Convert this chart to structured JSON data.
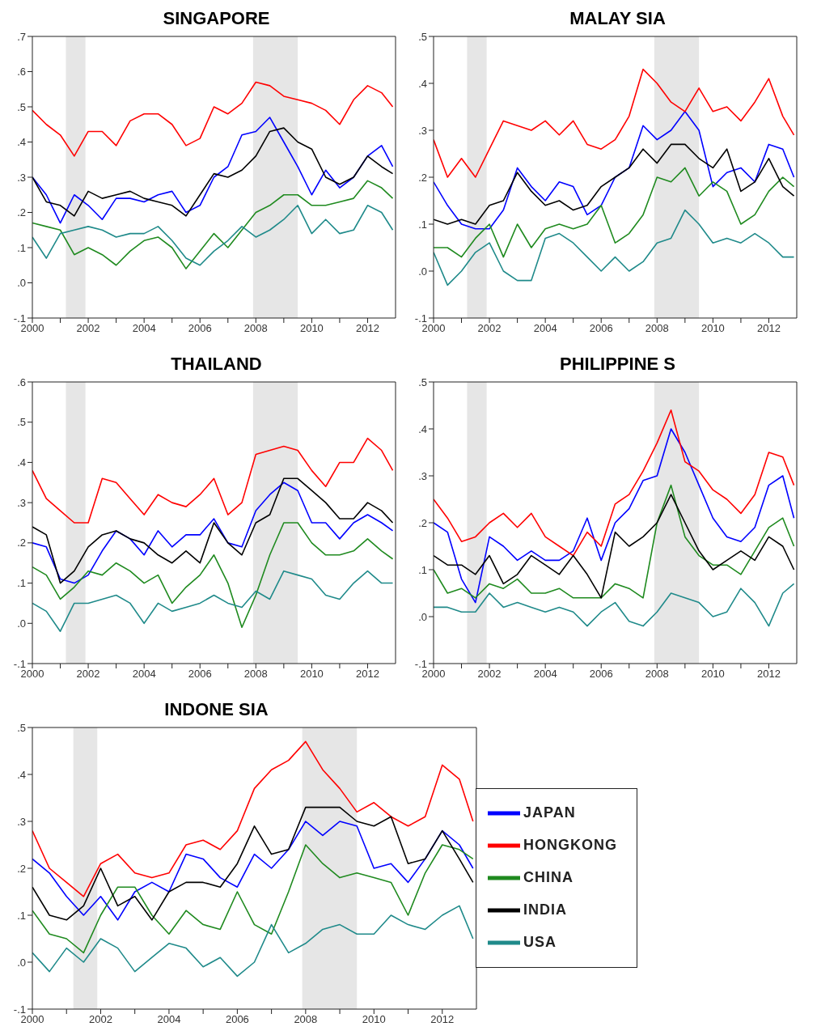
{
  "chart_data": [
    {
      "type": "line",
      "title": "SINGAPORE",
      "x": [
        2000,
        2000.5,
        2001,
        2001.5,
        2002,
        2002.5,
        2003,
        2003.5,
        2004,
        2004.5,
        2005,
        2005.5,
        2006,
        2006.5,
        2007,
        2007.5,
        2008,
        2008.5,
        2009,
        2009.5,
        2010,
        2010.5,
        2011,
        2011.5,
        2012,
        2012.5,
        2012.9
      ],
      "xlim": [
        2000,
        2013
      ],
      "xticks": [
        2000,
        {
          "value": 2001,
          "label": null
        },
        2002,
        {
          "value": 2003,
          "label": null
        },
        2004,
        {
          "value": 2005,
          "label": null
        },
        2006,
        {
          "value": 2007,
          "label": null
        },
        2008,
        {
          "value": 2009,
          "label": null
        },
        2010,
        {
          "value": 2011,
          "label": null
        },
        2012
      ],
      "ylim": [
        -0.1,
        0.7
      ],
      "yticks": [
        {
          "value": -0.1,
          "label": "-.1"
        },
        {
          "value": 0,
          "label": ".0"
        },
        {
          "value": 0.1,
          "label": ".1"
        },
        {
          "value": 0.2,
          "label": ".2"
        },
        {
          "value": 0.3,
          "label": ".3"
        },
        {
          "value": 0.4,
          "label": ".4"
        },
        {
          "value": 0.5,
          "label": ".5"
        },
        {
          "value": 0.6,
          "label": ".6"
        },
        {
          "value": 0.7,
          "label": ".7"
        }
      ],
      "bands": [
        {
          "axis": "x",
          "from": 2001.2,
          "to": 2001.9,
          "color": "#e6e6e6"
        },
        {
          "axis": "x",
          "from": 2007.9,
          "to": 2009.5,
          "color": "#e6e6e6"
        }
      ],
      "series": [
        {
          "color": "#0000ff",
          "values": [
            0.3,
            0.25,
            0.17,
            0.25,
            0.22,
            0.18,
            0.24,
            0.24,
            0.23,
            0.25,
            0.26,
            0.2,
            0.22,
            0.3,
            0.33,
            0.42,
            0.43,
            0.47,
            0.4,
            0.33,
            0.25,
            0.32,
            0.27,
            0.3,
            0.36,
            0.39,
            0.33
          ]
        },
        {
          "color": "#ff0000",
          "values": [
            0.49,
            0.45,
            0.42,
            0.36,
            0.43,
            0.43,
            0.39,
            0.46,
            0.48,
            0.48,
            0.45,
            0.39,
            0.41,
            0.5,
            0.48,
            0.51,
            0.57,
            0.56,
            0.53,
            0.52,
            0.51,
            0.49,
            0.45,
            0.52,
            0.56,
            0.54,
            0.5
          ]
        },
        {
          "color": "#1f8a1f",
          "values": [
            0.17,
            0.16,
            0.15,
            0.08,
            0.1,
            0.08,
            0.05,
            0.09,
            0.12,
            0.13,
            0.1,
            0.04,
            0.09,
            0.14,
            0.1,
            0.15,
            0.2,
            0.22,
            0.25,
            0.25,
            0.22,
            0.22,
            0.23,
            0.24,
            0.29,
            0.27,
            0.24
          ]
        },
        {
          "color": "#000000",
          "values": [
            0.3,
            0.23,
            0.22,
            0.19,
            0.26,
            0.24,
            0.25,
            0.26,
            0.24,
            0.23,
            0.22,
            0.19,
            0.25,
            0.31,
            0.3,
            0.32,
            0.36,
            0.43,
            0.44,
            0.4,
            0.38,
            0.3,
            0.28,
            0.3,
            0.36,
            0.33,
            0.31
          ]
        },
        {
          "color": "#1f8a8a",
          "values": [
            0.13,
            0.07,
            0.14,
            0.15,
            0.16,
            0.15,
            0.13,
            0.14,
            0.14,
            0.16,
            0.12,
            0.07,
            0.05,
            0.09,
            0.12,
            0.16,
            0.13,
            0.15,
            0.18,
            0.22,
            0.14,
            0.18,
            0.14,
            0.15,
            0.22,
            0.2,
            0.15
          ]
        }
      ]
    },
    {
      "type": "line",
      "title": "MALAY SIA",
      "x": [
        2000,
        2000.5,
        2001,
        2001.5,
        2002,
        2002.5,
        2003,
        2003.5,
        2004,
        2004.5,
        2005,
        2005.5,
        2006,
        2006.5,
        2007,
        2007.5,
        2008,
        2008.5,
        2009,
        2009.5,
        2010,
        2010.5,
        2011,
        2011.5,
        2012,
        2012.5,
        2012.9
      ],
      "xlim": [
        2000,
        2013
      ],
      "xticks": [
        2000,
        {
          "value": 2001,
          "label": null
        },
        2002,
        {
          "value": 2003,
          "label": null
        },
        2004,
        {
          "value": 2005,
          "label": null
        },
        2006,
        {
          "value": 2007,
          "label": null
        },
        2008,
        {
          "value": 2009,
          "label": null
        },
        2010,
        {
          "value": 2011,
          "label": null
        },
        2012
      ],
      "ylim": [
        -0.1,
        0.5
      ],
      "yticks": [
        {
          "value": -0.1,
          "label": "-.1"
        },
        {
          "value": 0,
          "label": ".0"
        },
        {
          "value": 0.1,
          "label": ".1"
        },
        {
          "value": 0.2,
          "label": ".2"
        },
        {
          "value": 0.3,
          "label": ".3"
        },
        {
          "value": 0.4,
          "label": ".4"
        },
        {
          "value": 0.5,
          "label": ".5"
        }
      ],
      "bands": [
        {
          "axis": "x",
          "from": 2001.2,
          "to": 2001.9,
          "color": "#e6e6e6"
        },
        {
          "axis": "x",
          "from": 2007.9,
          "to": 2009.5,
          "color": "#e6e6e6"
        }
      ],
      "series": [
        {
          "color": "#0000ff",
          "values": [
            0.19,
            0.14,
            0.1,
            0.09,
            0.09,
            0.13,
            0.22,
            0.18,
            0.15,
            0.19,
            0.18,
            0.12,
            0.14,
            0.2,
            0.22,
            0.31,
            0.28,
            0.3,
            0.34,
            0.3,
            0.18,
            0.21,
            0.22,
            0.19,
            0.27,
            0.26,
            0.2
          ]
        },
        {
          "color": "#ff0000",
          "values": [
            0.28,
            0.2,
            0.24,
            0.2,
            0.26,
            0.32,
            0.31,
            0.3,
            0.32,
            0.29,
            0.32,
            0.27,
            0.26,
            0.28,
            0.33,
            0.43,
            0.4,
            0.36,
            0.34,
            0.39,
            0.34,
            0.35,
            0.32,
            0.36,
            0.41,
            0.33,
            0.29
          ]
        },
        {
          "color": "#1f8a1f",
          "values": [
            0.05,
            0.05,
            0.03,
            0.07,
            0.1,
            0.03,
            0.1,
            0.05,
            0.09,
            0.1,
            0.09,
            0.1,
            0.14,
            0.06,
            0.08,
            0.12,
            0.2,
            0.19,
            0.22,
            0.16,
            0.19,
            0.17,
            0.1,
            0.12,
            0.17,
            0.2,
            0.18
          ]
        },
        {
          "color": "#000000",
          "values": [
            0.11,
            0.1,
            0.11,
            0.1,
            0.14,
            0.15,
            0.21,
            0.17,
            0.14,
            0.15,
            0.13,
            0.14,
            0.18,
            0.2,
            0.22,
            0.26,
            0.23,
            0.27,
            0.27,
            0.24,
            0.22,
            0.26,
            0.17,
            0.19,
            0.24,
            0.18,
            0.16
          ]
        },
        {
          "color": "#1f8a8a",
          "values": [
            0.04,
            -0.03,
            0.0,
            0.04,
            0.06,
            0.0,
            -0.02,
            -0.02,
            0.07,
            0.08,
            0.06,
            0.03,
            0.0,
            0.03,
            0.0,
            0.02,
            0.06,
            0.07,
            0.13,
            0.1,
            0.06,
            0.07,
            0.06,
            0.08,
            0.06,
            0.03,
            0.03
          ]
        }
      ]
    },
    {
      "type": "line",
      "title": "THAILAND",
      "x": [
        2000,
        2000.5,
        2001,
        2001.5,
        2002,
        2002.5,
        2003,
        2003.5,
        2004,
        2004.5,
        2005,
        2005.5,
        2006,
        2006.5,
        2007,
        2007.5,
        2008,
        2008.5,
        2009,
        2009.5,
        2010,
        2010.5,
        2011,
        2011.5,
        2012,
        2012.5,
        2012.9
      ],
      "xlim": [
        2000,
        2013
      ],
      "xticks": [
        2000,
        {
          "value": 2001,
          "label": null
        },
        2002,
        {
          "value": 2003,
          "label": null
        },
        2004,
        {
          "value": 2005,
          "label": null
        },
        2006,
        {
          "value": 2007,
          "label": null
        },
        2008,
        {
          "value": 2009,
          "label": null
        },
        2010,
        {
          "value": 2011,
          "label": null
        },
        2012
      ],
      "ylim": [
        -0.1,
        0.6
      ],
      "yticks": [
        {
          "value": -0.1,
          "label": "-.1"
        },
        {
          "value": 0,
          "label": ".0"
        },
        {
          "value": 0.1,
          "label": ".1"
        },
        {
          "value": 0.2,
          "label": ".2"
        },
        {
          "value": 0.3,
          "label": ".3"
        },
        {
          "value": 0.4,
          "label": ".4"
        },
        {
          "value": 0.5,
          "label": ".5"
        },
        {
          "value": 0.6,
          "label": ".6"
        }
      ],
      "bands": [
        {
          "axis": "x",
          "from": 2001.2,
          "to": 2001.9,
          "color": "#e6e6e6"
        },
        {
          "axis": "x",
          "from": 2007.9,
          "to": 2009.5,
          "color": "#e6e6e6"
        }
      ],
      "series": [
        {
          "color": "#0000ff",
          "values": [
            0.2,
            0.19,
            0.11,
            0.1,
            0.12,
            0.18,
            0.23,
            0.21,
            0.17,
            0.23,
            0.19,
            0.22,
            0.22,
            0.26,
            0.2,
            0.19,
            0.28,
            0.32,
            0.35,
            0.33,
            0.25,
            0.25,
            0.21,
            0.25,
            0.27,
            0.25,
            0.23
          ]
        },
        {
          "color": "#ff0000",
          "values": [
            0.38,
            0.31,
            0.28,
            0.25,
            0.25,
            0.36,
            0.35,
            0.31,
            0.27,
            0.32,
            0.3,
            0.29,
            0.32,
            0.36,
            0.27,
            0.3,
            0.42,
            0.43,
            0.44,
            0.43,
            0.38,
            0.34,
            0.4,
            0.4,
            0.46,
            0.43,
            0.38
          ]
        },
        {
          "color": "#1f8a1f",
          "values": [
            0.14,
            0.12,
            0.06,
            0.09,
            0.13,
            0.12,
            0.15,
            0.13,
            0.1,
            0.12,
            0.05,
            0.09,
            0.12,
            0.17,
            0.1,
            -0.01,
            0.07,
            0.17,
            0.25,
            0.25,
            0.2,
            0.17,
            0.17,
            0.18,
            0.21,
            0.18,
            0.16
          ]
        },
        {
          "color": "#000000",
          "values": [
            0.24,
            0.22,
            0.1,
            0.13,
            0.19,
            0.22,
            0.23,
            0.21,
            0.2,
            0.17,
            0.15,
            0.18,
            0.15,
            0.25,
            0.2,
            0.17,
            0.25,
            0.27,
            0.36,
            0.36,
            0.33,
            0.3,
            0.26,
            0.26,
            0.3,
            0.28,
            0.25
          ]
        },
        {
          "color": "#1f8a8a",
          "values": [
            0.05,
            0.03,
            -0.02,
            0.05,
            0.05,
            0.06,
            0.07,
            0.05,
            0.0,
            0.05,
            0.03,
            0.04,
            0.05,
            0.07,
            0.05,
            0.04,
            0.08,
            0.06,
            0.13,
            0.12,
            0.11,
            0.07,
            0.06,
            0.1,
            0.13,
            0.1,
            0.1
          ]
        }
      ]
    },
    {
      "type": "line",
      "title": "PHILIPPINE S",
      "x": [
        2000,
        2000.5,
        2001,
        2001.5,
        2002,
        2002.5,
        2003,
        2003.5,
        2004,
        2004.5,
        2005,
        2005.5,
        2006,
        2006.5,
        2007,
        2007.5,
        2008,
        2008.5,
        2009,
        2009.5,
        2010,
        2010.5,
        2011,
        2011.5,
        2012,
        2012.5,
        2012.9
      ],
      "xlim": [
        2000,
        2013
      ],
      "xticks": [
        2000,
        {
          "value": 2001,
          "label": null
        },
        2002,
        {
          "value": 2003,
          "label": null
        },
        2004,
        {
          "value": 2005,
          "label": null
        },
        2006,
        {
          "value": 2007,
          "label": null
        },
        2008,
        {
          "value": 2009,
          "label": null
        },
        2010,
        {
          "value": 2011,
          "label": null
        },
        2012
      ],
      "ylim": [
        -0.1,
        0.5
      ],
      "yticks": [
        {
          "value": -0.1,
          "label": "-.1"
        },
        {
          "value": 0,
          "label": ".0"
        },
        {
          "value": 0.1,
          "label": ".1"
        },
        {
          "value": 0.2,
          "label": ".2"
        },
        {
          "value": 0.3,
          "label": ".3"
        },
        {
          "value": 0.4,
          "label": ".4"
        },
        {
          "value": 0.5,
          "label": ".5"
        }
      ],
      "bands": [
        {
          "axis": "x",
          "from": 2001.2,
          "to": 2001.9,
          "color": "#e6e6e6"
        },
        {
          "axis": "x",
          "from": 2007.9,
          "to": 2009.5,
          "color": "#e6e6e6"
        }
      ],
      "series": [
        {
          "color": "#0000ff",
          "values": [
            0.2,
            0.18,
            0.08,
            0.03,
            0.17,
            0.15,
            0.12,
            0.14,
            0.12,
            0.12,
            0.14,
            0.21,
            0.12,
            0.2,
            0.23,
            0.29,
            0.3,
            0.4,
            0.35,
            0.28,
            0.21,
            0.17,
            0.16,
            0.19,
            0.28,
            0.3,
            0.21
          ]
        },
        {
          "color": "#ff0000",
          "values": [
            0.25,
            0.21,
            0.16,
            0.17,
            0.2,
            0.22,
            0.19,
            0.22,
            0.17,
            0.15,
            0.13,
            0.18,
            0.15,
            0.24,
            0.26,
            0.31,
            0.37,
            0.44,
            0.33,
            0.31,
            0.27,
            0.25,
            0.22,
            0.26,
            0.35,
            0.34,
            0.28
          ]
        },
        {
          "color": "#1f8a1f",
          "values": [
            0.1,
            0.05,
            0.06,
            0.04,
            0.07,
            0.06,
            0.08,
            0.05,
            0.05,
            0.06,
            0.04,
            0.04,
            0.04,
            0.07,
            0.06,
            0.04,
            0.2,
            0.28,
            0.17,
            0.13,
            0.11,
            0.11,
            0.09,
            0.14,
            0.19,
            0.21,
            0.15
          ]
        },
        {
          "color": "#000000",
          "values": [
            0.13,
            0.11,
            0.11,
            0.09,
            0.13,
            0.07,
            0.09,
            0.13,
            0.11,
            0.09,
            0.13,
            0.09,
            0.04,
            0.18,
            0.15,
            0.17,
            0.2,
            0.26,
            0.2,
            0.14,
            0.1,
            0.12,
            0.14,
            0.12,
            0.17,
            0.15,
            0.1
          ]
        },
        {
          "color": "#1f8a8a",
          "values": [
            0.02,
            0.02,
            0.01,
            0.01,
            0.05,
            0.02,
            0.03,
            0.02,
            0.01,
            0.02,
            0.01,
            -0.02,
            0.01,
            0.03,
            -0.01,
            -0.02,
            0.01,
            0.05,
            0.04,
            0.03,
            0.0,
            0.01,
            0.06,
            0.03,
            -0.02,
            0.05,
            0.07
          ]
        }
      ]
    },
    {
      "type": "line",
      "title": "INDONE SIA",
      "legend": "right",
      "x": [
        2000,
        2000.5,
        2001,
        2001.5,
        2002,
        2002.5,
        2003,
        2003.5,
        2004,
        2004.5,
        2005,
        2005.5,
        2006,
        2006.5,
        2007,
        2007.5,
        2008,
        2008.5,
        2009,
        2009.5,
        2010,
        2010.5,
        2011,
        2011.5,
        2012,
        2012.5,
        2012.9
      ],
      "xlim": [
        2000,
        2013
      ],
      "xticks": [
        2000,
        {
          "value": 2001,
          "label": null
        },
        2002,
        {
          "value": 2003,
          "label": null
        },
        2004,
        {
          "value": 2005,
          "label": null
        },
        2006,
        {
          "value": 2007,
          "label": null
        },
        2008,
        {
          "value": 2009,
          "label": null
        },
        2010,
        {
          "value": 2011,
          "label": null
        },
        2012
      ],
      "ylim": [
        -0.1,
        0.5
      ],
      "yticks": [
        {
          "value": -0.1,
          "label": "-.1"
        },
        {
          "value": 0,
          "label": ".0"
        },
        {
          "value": 0.1,
          "label": ".1"
        },
        {
          "value": 0.2,
          "label": ".2"
        },
        {
          "value": 0.3,
          "label": ".3"
        },
        {
          "value": 0.4,
          "label": ".4"
        },
        {
          "value": 0.5,
          "label": ".5"
        }
      ],
      "bands": [
        {
          "axis": "x",
          "from": 2001.2,
          "to": 2001.9,
          "color": "#e6e6e6"
        },
        {
          "axis": "x",
          "from": 2007.9,
          "to": 2009.5,
          "color": "#e6e6e6"
        }
      ],
      "series": [
        {
          "name": "JAPAN",
          "color": "#0000ff",
          "values": [
            0.22,
            0.19,
            0.14,
            0.1,
            0.14,
            0.09,
            0.15,
            0.17,
            0.15,
            0.23,
            0.22,
            0.18,
            0.16,
            0.23,
            0.2,
            0.24,
            0.3,
            0.27,
            0.3,
            0.29,
            0.2,
            0.21,
            0.17,
            0.22,
            0.28,
            0.25,
            0.2
          ]
        },
        {
          "name": "HONGKONG",
          "color": "#ff0000",
          "values": [
            0.28,
            0.2,
            0.17,
            0.14,
            0.21,
            0.23,
            0.19,
            0.18,
            0.19,
            0.25,
            0.26,
            0.24,
            0.28,
            0.37,
            0.41,
            0.43,
            0.47,
            0.41,
            0.37,
            0.32,
            0.34,
            0.31,
            0.29,
            0.31,
            0.42,
            0.39,
            0.3
          ]
        },
        {
          "name": "CHINA",
          "color": "#1f8a1f",
          "values": [
            0.11,
            0.06,
            0.05,
            0.02,
            0.1,
            0.16,
            0.16,
            0.1,
            0.06,
            0.11,
            0.08,
            0.07,
            0.15,
            0.08,
            0.06,
            0.15,
            0.25,
            0.21,
            0.18,
            0.19,
            0.18,
            0.17,
            0.1,
            0.19,
            0.25,
            0.24,
            0.22
          ]
        },
        {
          "name": "INDIA",
          "color": "#000000",
          "values": [
            0.16,
            0.1,
            0.09,
            0.12,
            0.2,
            0.12,
            0.14,
            0.09,
            0.15,
            0.17,
            0.17,
            0.16,
            0.21,
            0.29,
            0.23,
            0.24,
            0.33,
            0.33,
            0.33,
            0.3,
            0.29,
            0.31,
            0.21,
            0.22,
            0.28,
            0.22,
            0.17
          ]
        },
        {
          "name": "USA",
          "color": "#1f8a8a",
          "values": [
            0.02,
            -0.02,
            0.03,
            0.0,
            0.05,
            0.03,
            -0.02,
            0.01,
            0.04,
            0.03,
            -0.01,
            0.01,
            -0.03,
            0.0,
            0.08,
            0.02,
            0.04,
            0.07,
            0.08,
            0.06,
            0.06,
            0.1,
            0.08,
            0.07,
            0.1,
            0.12,
            0.05
          ]
        }
      ]
    }
  ]
}
